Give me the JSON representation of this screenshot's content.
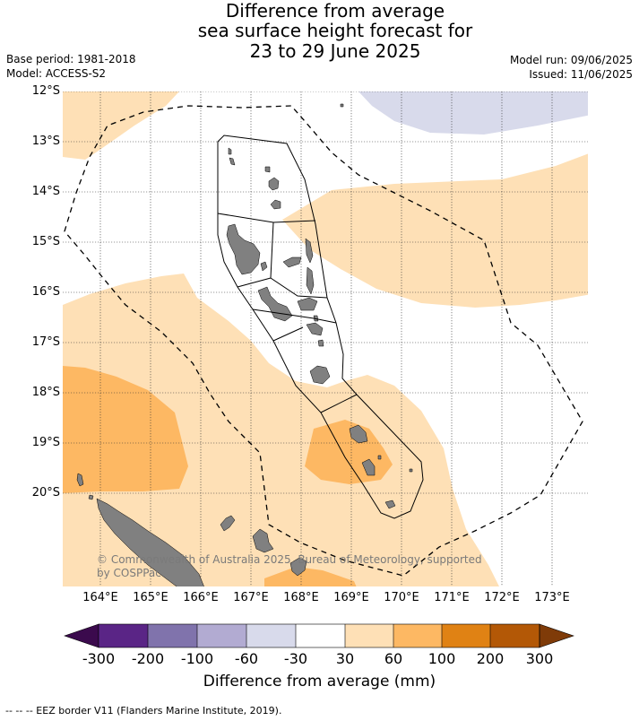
{
  "title": {
    "line1": "Difference from average",
    "line2": "sea surface height forecast for",
    "line3": "23 to 29 June 2025"
  },
  "meta": {
    "base_period": "Base period: 1981-2018",
    "model": "Model: ACCESS-S2",
    "model_run": "Model run: 09/06/2025",
    "issued": "Issued: 11/06/2025"
  },
  "axes": {
    "latitudes": [
      "12°S",
      "13°S",
      "14°S",
      "15°S",
      "16°S",
      "17°S",
      "18°S",
      "19°S",
      "20°S"
    ],
    "longitudes": [
      "164°E",
      "165°E",
      "166°E",
      "167°E",
      "168°E",
      "169°E",
      "170°E",
      "171°E",
      "172°E",
      "173°E"
    ]
  },
  "credit": "© Commonwealth of Australia 2025, Bureau of Meteorology, supported by COSPPac",
  "legend": {
    "title": "Difference from average (mm)",
    "labels": [
      "-300",
      "-200",
      "-100",
      "-60",
      "-30",
      "30",
      "60",
      "100",
      "200",
      "300"
    ],
    "colors": {
      "below_min": "#3b0a4d",
      "bin_1": "#5a2586",
      "bin_2": "#8073ac",
      "bin_3": "#b2abd2",
      "bin_4": "#d8daeb",
      "bin_5": "#ffffff",
      "bin_6": "#fee0b6",
      "bin_7": "#fdb863",
      "bin_8": "#e08214",
      "bin_9": "#b35806",
      "above_max": "#7f3b08"
    }
  },
  "map_colors": {
    "land": "#808080",
    "zone_light": "#fee0b6",
    "zone_medium": "#fdb863",
    "zone_lavender": "#d8daeb"
  },
  "footer": "--  --  -- EEZ border V11 (Flanders Marine Institute, 2019)."
}
